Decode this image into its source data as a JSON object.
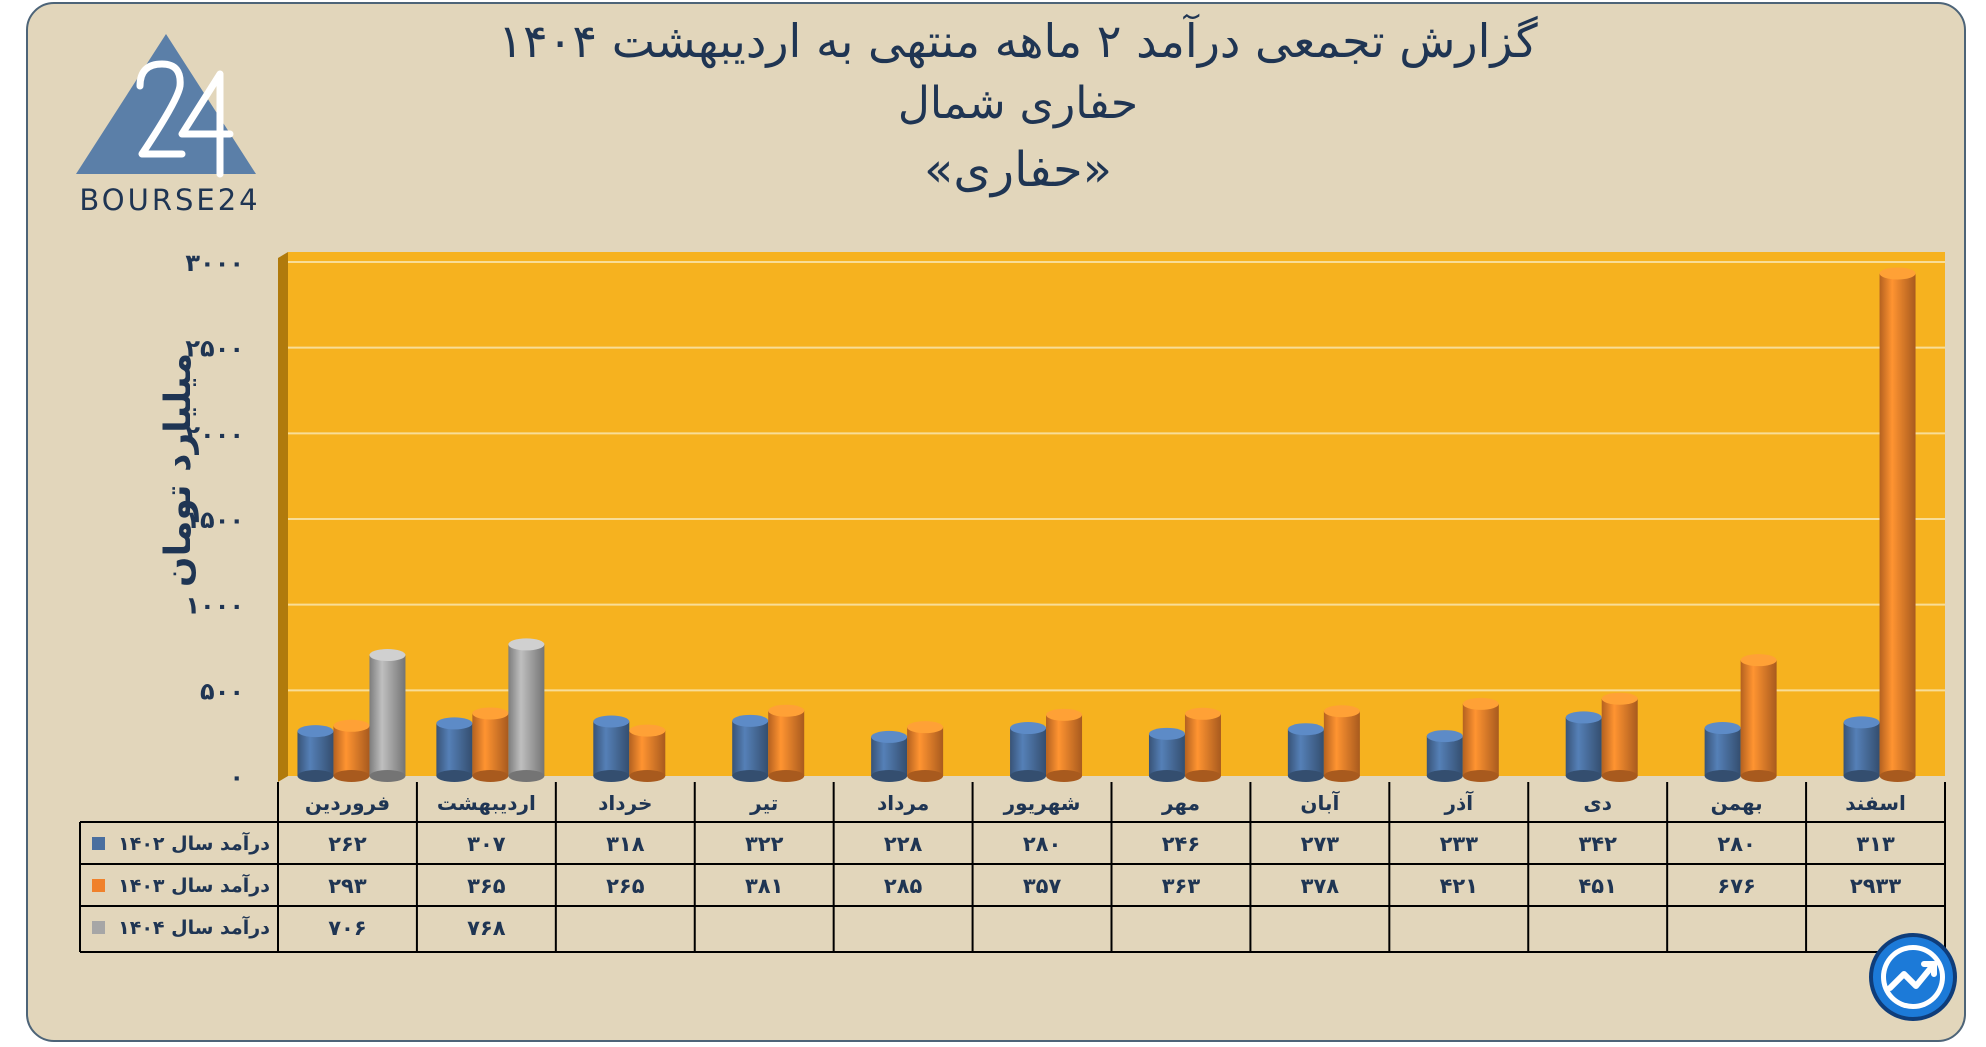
{
  "title": {
    "line1": "گزارش تجمعی درآمد ۲ ماهه منتهی به اردیبهشت ۱۴۰۴",
    "line2": "حفاری شمال",
    "line3": "«حفاری»"
  },
  "logo": {
    "text": "BOURSE24",
    "mark": "24"
  },
  "colors": {
    "card_bg": "#e2d6bb",
    "plot_bg": "#f6b21f",
    "series_1402": "#4a6f9f",
    "series_1403": "#f0812b",
    "series_1404": "#a6a6a6",
    "text": "#1f3553"
  },
  "chart_data": {
    "type": "bar",
    "ylabel": "میلیارد تومان",
    "ylim": [
      0,
      3000
    ],
    "yticks": [
      0,
      500,
      1000,
      1500,
      2000,
      2500,
      3000
    ],
    "ytick_labels": [
      "۰",
      "۵۰۰",
      "۱۰۰۰",
      "۱۵۰۰",
      "۲۰۰۰",
      "۲۵۰۰",
      "۳۰۰۰"
    ],
    "grid": true,
    "legend": "data-table-left",
    "categories": [
      "فروردین",
      "اردیبهشت",
      "خرداد",
      "تیر",
      "مرداد",
      "شهریور",
      "مهر",
      "آبان",
      "آذر",
      "دی",
      "بهمن",
      "اسفند"
    ],
    "series": [
      {
        "name": "درآمد سال ۱۴۰۲",
        "color": "#4a6f9f",
        "values": [
          262,
          307,
          318,
          322,
          228,
          280,
          246,
          273,
          233,
          342,
          280,
          313
        ],
        "labels": [
          "۲۶۲",
          "۳۰۷",
          "۳۱۸",
          "۳۲۲",
          "۲۲۸",
          "۲۸۰",
          "۲۴۶",
          "۲۷۳",
          "۲۳۳",
          "۳۴۲",
          "۲۸۰",
          "۳۱۳"
        ]
      },
      {
        "name": "درآمد سال ۱۴۰۳",
        "color": "#f0812b",
        "values": [
          293,
          365,
          265,
          381,
          285,
          357,
          363,
          378,
          421,
          451,
          676,
          2933
        ],
        "labels": [
          "۲۹۳",
          "۳۶۵",
          "۲۶۵",
          "۳۸۱",
          "۲۸۵",
          "۳۵۷",
          "۳۶۳",
          "۳۷۸",
          "۴۲۱",
          "۴۵۱",
          "۶۷۶",
          "۲۹۳۳"
        ]
      },
      {
        "name": "درآمد سال ۱۴۰۴",
        "color": "#a6a6a6",
        "values": [
          706,
          768,
          null,
          null,
          null,
          null,
          null,
          null,
          null,
          null,
          null,
          null
        ],
        "labels": [
          "۷۰۶",
          "۷۶۸",
          "",
          "",
          "",
          "",
          "",
          "",
          "",
          "",
          "",
          ""
        ]
      }
    ]
  }
}
